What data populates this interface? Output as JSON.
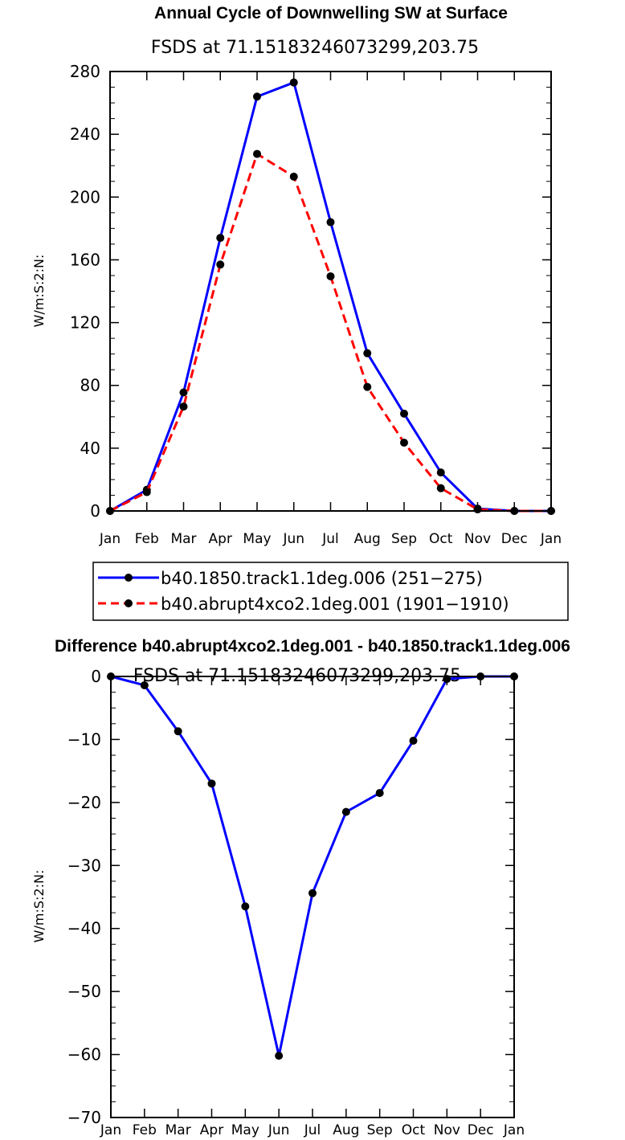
{
  "chart_data": [
    {
      "type": "line",
      "title": "Annual Cycle of Downwelling SW at Surface",
      "subtitle": "FSDS at 71.15183246073299,203.75",
      "xlabel": "",
      "ylabel": "W/m:S:2:N:",
      "categories": [
        "Jan",
        "Feb",
        "Mar",
        "Apr",
        "May",
        "Jun",
        "Jul",
        "Aug",
        "Sep",
        "Oct",
        "Nov",
        "Dec",
        "Jan"
      ],
      "ylim": [
        0,
        280
      ],
      "yticks": [
        0,
        40,
        80,
        120,
        160,
        200,
        240,
        280
      ],
      "series": [
        {
          "name": "b40.1850.track1.1deg.006 (251−275)",
          "color": "#0000ff",
          "dash": "solid",
          "values": [
            0,
            13.5,
            75.5,
            174,
            264,
            273,
            184,
            100.5,
            62,
            24.5,
            1.5,
            0,
            0
          ]
        },
        {
          "name": "b40.abrupt4xco2.1deg.001 (1901−1910)",
          "color": "#ff0000",
          "dash": "dashed",
          "values": [
            0,
            12,
            66.5,
            157,
            227.5,
            213,
            149.5,
            79,
            43.5,
            14.5,
            1,
            0,
            0
          ]
        }
      ]
    },
    {
      "type": "line",
      "title": "Difference b40.abrupt4xco2.1deg.001 - b40.1850.track1.1deg.006",
      "subtitle": "FSDS at 71.15183246073299,203.75",
      "xlabel": "",
      "ylabel": "W/m:S:2:N:",
      "categories": [
        "Jan",
        "Feb",
        "Mar",
        "Apr",
        "May",
        "Jun",
        "Jul",
        "Aug",
        "Sep",
        "Oct",
        "Nov",
        "Dec",
        "Jan"
      ],
      "ylim": [
        -70,
        0
      ],
      "yticks": [
        0,
        -10,
        -20,
        -30,
        -40,
        -50,
        -60,
        -70
      ],
      "series": [
        {
          "name": "Difference",
          "color": "#0000ff",
          "dash": "solid",
          "values": [
            0,
            -1.4,
            -8.7,
            -17,
            -36.5,
            -60.2,
            -34.4,
            -21.5,
            -18.5,
            -10.2,
            -0.4,
            0,
            0
          ]
        }
      ]
    }
  ]
}
